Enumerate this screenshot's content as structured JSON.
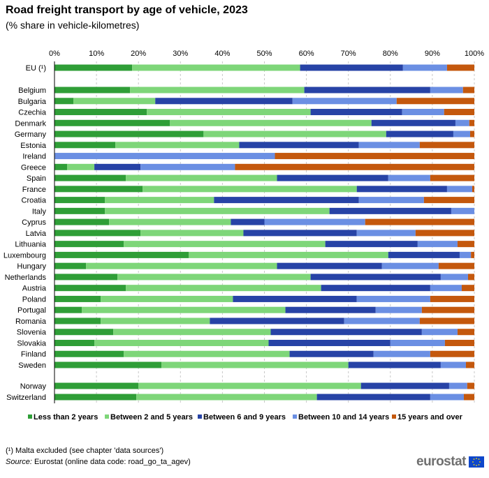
{
  "title": "Road freight transport by age of vehicle, 2023",
  "subtitle": "(% share in vehicle-kilometres)",
  "footnote": "(¹) Malta excluded (see chapter 'data sources')",
  "source": {
    "label": "Source:",
    "text": " Eurostat (online data code: road_go_ta_agev)"
  },
  "logo": {
    "text": "eurostat",
    "icon": "eu-flag-icon"
  },
  "chart_data": {
    "type": "bar",
    "orientation": "horizontal",
    "stacked": true,
    "xlim": [
      0,
      100
    ],
    "xticks": [
      "0%",
      "10%",
      "20%",
      "30%",
      "40%",
      "50%",
      "60%",
      "70%",
      "80%",
      "90%",
      "100%"
    ],
    "grid": "vertical-dashed",
    "legend_position": "bottom",
    "colors": [
      "#2f9e37",
      "#7ed679",
      "#2743a6",
      "#6b8fe3",
      "#c4580d"
    ],
    "series": [
      {
        "name": "Less than 2 years"
      },
      {
        "name": "Between 2 and 5 years"
      },
      {
        "name": "Between 6 and 9 years"
      },
      {
        "name": "Between 10 and 14 years"
      },
      {
        "name": "15 years and over"
      }
    ],
    "categories": [
      {
        "label": "EU (¹)",
        "values": [
          18.5,
          40.0,
          24.5,
          10.5,
          6.5
        ]
      },
      {
        "label": "Belgium",
        "values": [
          18.0,
          41.5,
          30.0,
          7.8,
          2.7
        ]
      },
      {
        "label": "Bulgaria",
        "values": [
          4.5,
          19.5,
          32.7,
          24.8,
          18.5
        ]
      },
      {
        "label": "Czechia",
        "values": [
          22.0,
          39.0,
          21.8,
          10.0,
          7.2
        ]
      },
      {
        "label": "Denmark",
        "values": [
          27.5,
          48.0,
          20.0,
          3.3,
          1.2
        ]
      },
      {
        "label": "Germany",
        "values": [
          35.5,
          43.5,
          16.0,
          4.0,
          1.0
        ]
      },
      {
        "label": "Estonia",
        "values": [
          14.5,
          29.5,
          28.5,
          14.5,
          13.0
        ]
      },
      {
        "label": "Ireland",
        "values": [
          0.0,
          0.0,
          0.0,
          52.5,
          47.5
        ]
      },
      {
        "label": "Greece",
        "values": [
          3.0,
          6.5,
          11.0,
          22.5,
          57.0
        ]
      },
      {
        "label": "Spain",
        "values": [
          17.0,
          36.0,
          26.5,
          10.0,
          10.5
        ]
      },
      {
        "label": "France",
        "values": [
          21.0,
          51.0,
          21.5,
          6.0,
          0.5
        ]
      },
      {
        "label": "Croatia",
        "values": [
          12.0,
          26.0,
          34.5,
          15.5,
          12.0
        ]
      },
      {
        "label": "Italy",
        "values": [
          12.0,
          53.5,
          29.0,
          5.5,
          0.0
        ]
      },
      {
        "label": "Cyprus",
        "values": [
          13.0,
          29.0,
          8.0,
          24.0,
          26.0
        ]
      },
      {
        "label": "Latvia",
        "values": [
          20.5,
          24.5,
          27.0,
          14.0,
          14.0
        ]
      },
      {
        "label": "Lithuania",
        "values": [
          16.5,
          48.0,
          22.0,
          9.5,
          4.0
        ]
      },
      {
        "label": "Luxembourg",
        "values": [
          32.0,
          47.5,
          17.0,
          2.7,
          0.8
        ]
      },
      {
        "label": "Hungary",
        "values": [
          7.5,
          45.5,
          25.0,
          13.5,
          8.5
        ]
      },
      {
        "label": "Netherlands",
        "values": [
          15.0,
          46.0,
          31.0,
          6.5,
          1.5
        ]
      },
      {
        "label": "Austria",
        "values": [
          17.0,
          46.5,
          26.0,
          7.5,
          3.0
        ]
      },
      {
        "label": "Poland",
        "values": [
          11.0,
          31.5,
          29.5,
          17.5,
          10.5
        ]
      },
      {
        "label": "Portugal",
        "values": [
          6.5,
          48.5,
          21.5,
          11.0,
          12.5
        ]
      },
      {
        "label": "Romania",
        "values": [
          11.0,
          26.0,
          32.0,
          18.0,
          13.0
        ]
      },
      {
        "label": "Slovenia",
        "values": [
          14.0,
          37.5,
          36.0,
          8.5,
          4.0
        ]
      },
      {
        "label": "Slovakia",
        "values": [
          9.5,
          41.5,
          29.0,
          13.0,
          7.0
        ]
      },
      {
        "label": "Finland",
        "values": [
          16.5,
          39.5,
          20.0,
          13.5,
          10.5
        ]
      },
      {
        "label": "Sweden",
        "values": [
          25.5,
          44.5,
          22.0,
          6.0,
          2.0
        ]
      },
      {
        "label": "Norway",
        "values": [
          20.0,
          53.0,
          21.0,
          4.3,
          1.7
        ]
      },
      {
        "label": "Switzerland",
        "values": [
          19.5,
          43.0,
          27.0,
          8.0,
          2.5
        ]
      }
    ]
  }
}
